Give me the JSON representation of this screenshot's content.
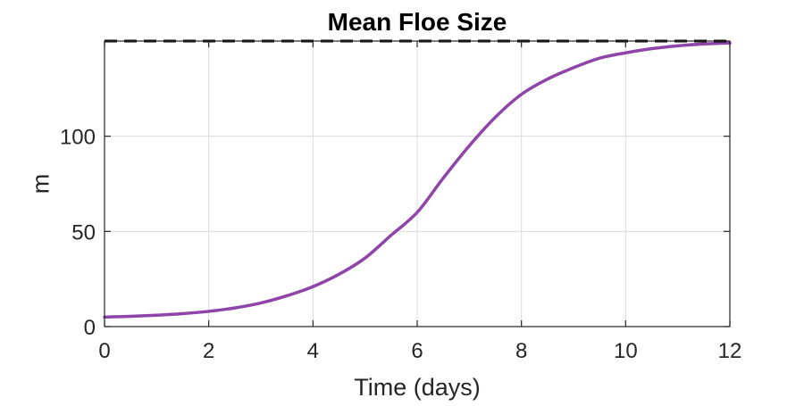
{
  "chart_data": {
    "type": "line",
    "title": "Mean Floe Size",
    "xlabel": "Time (days)",
    "ylabel": "m",
    "xlim": [
      0,
      12
    ],
    "ylim": [
      0,
      150
    ],
    "xticks": [
      0,
      2,
      4,
      6,
      8,
      10,
      12
    ],
    "yticks": [
      0,
      50,
      100
    ],
    "xtick_labels": [
      "0",
      "2",
      "4",
      "6",
      "8",
      "10",
      "12"
    ],
    "ytick_labels": [
      "0",
      "50",
      "100"
    ],
    "grid": true,
    "series": [
      {
        "color": "#8e44a8",
        "style": "solid",
        "x": [
          0,
          0.5,
          1,
          1.5,
          2,
          2.5,
          3,
          3.5,
          4,
          4.5,
          5,
          5.5,
          6,
          6.5,
          7,
          7.5,
          8,
          8.5,
          9,
          9.5,
          10,
          10.5,
          11,
          11.5,
          12
        ],
        "y": [
          5,
          5.4,
          6,
          6.8,
          8,
          9.8,
          12.4,
          16.2,
          21,
          27.5,
          36,
          48,
          60,
          78,
          95,
          110,
          122,
          130,
          136,
          141,
          143.8,
          146,
          147.5,
          148.5,
          149
        ]
      },
      {
        "color": "#000000",
        "style": "dashed",
        "x": [
          0,
          12
        ],
        "y": [
          150,
          150
        ]
      }
    ]
  }
}
